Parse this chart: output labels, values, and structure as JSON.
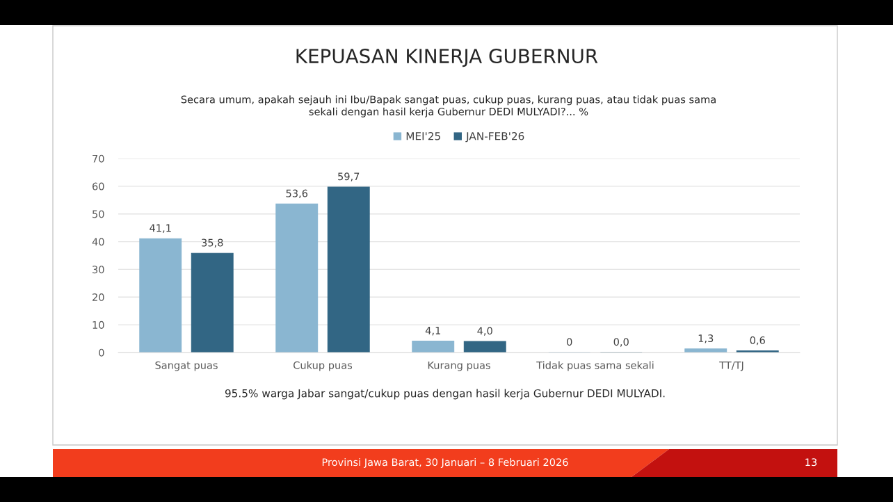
{
  "chart_data": {
    "type": "bar",
    "title": "KEPUASAN KINERJA GUBERNUR",
    "subtitle": "Secara umum, apakah sejauh ini Ibu/Bapak sangat puas, cukup puas, kurang puas, atau tidak puas sama\nsekali dengan hasil kerja Gubernur DEDI MULYADI?... %",
    "categories": [
      "Sangat puas",
      "Cukup puas",
      "Kurang puas",
      "Tidak puas sama sekali",
      "TT/TJ"
    ],
    "series": [
      {
        "name": "MEI'25",
        "color": "#8ab6d1",
        "values": [
          41.1,
          53.6,
          4.1,
          0,
          1.3
        ],
        "value_labels": [
          "41,1",
          "53,6",
          "4,1",
          "0",
          "1,3"
        ]
      },
      {
        "name": "JAN-FEB'26",
        "color": "#326684",
        "values": [
          35.8,
          59.7,
          4.0,
          0.0,
          0.6
        ],
        "value_labels": [
          "35,8",
          "59,7",
          "4,0",
          "0,0",
          "0,6"
        ]
      }
    ],
    "ylim": [
      0,
      70
    ],
    "yticks": [
      0,
      10,
      20,
      30,
      40,
      50,
      60,
      70
    ],
    "grid": "y",
    "legend": "top",
    "annotations": [
      "95.5% warga Jabar sangat/cukup puas dengan hasil kerja Gubernur DEDI MULYADI.",
      "Provinsi Jawa Barat, 30 Januari – 8 Februari 2026",
      "13"
    ]
  }
}
